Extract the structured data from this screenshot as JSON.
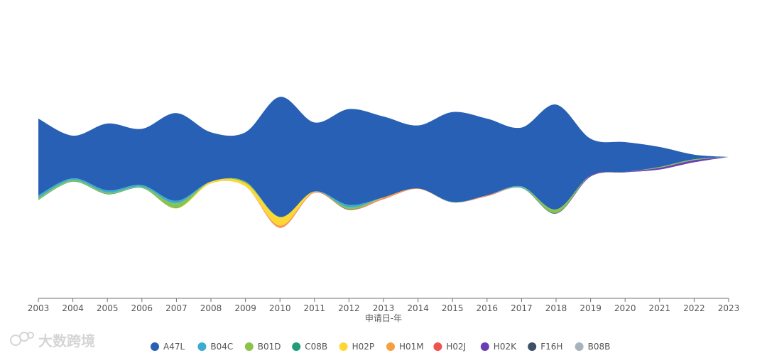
{
  "chart_data": {
    "type": "area",
    "subtype": "streamgraph",
    "title": "",
    "xlabel": "申请日-年",
    "ylabel": "",
    "x": [
      "2003",
      "2004",
      "2005",
      "2006",
      "2007",
      "2008",
      "2009",
      "2010",
      "2011",
      "2012",
      "2013",
      "2014",
      "2015",
      "2016",
      "2017",
      "2018",
      "2019",
      "2020",
      "2021",
      "2022",
      "2023"
    ],
    "legend_position": "bottom",
    "grid": false,
    "series": [
      {
        "name": "A47L",
        "color": "#2760b4",
        "values": [
          180,
          100,
          157,
          132,
          206,
          116,
          116,
          282,
          162,
          225,
          190,
          148,
          211,
          180,
          138,
          246,
          86,
          70,
          47,
          11,
          0
        ]
      },
      {
        "name": "B04C",
        "color": "#3aacd0",
        "values": [
          6,
          4,
          5,
          4,
          6,
          0,
          0,
          0,
          0,
          6,
          0,
          0,
          0,
          0,
          2,
          0,
          0,
          0,
          0,
          0,
          0
        ]
      },
      {
        "name": "B01D",
        "color": "#8bc34a",
        "values": [
          4,
          3,
          3,
          2,
          10,
          0,
          2,
          0,
          0,
          4,
          0,
          0,
          0,
          0,
          1,
          8,
          0,
          0,
          2,
          2,
          0
        ]
      },
      {
        "name": "C08B",
        "color": "#1f9d7a",
        "values": [
          1,
          1,
          1,
          1,
          1,
          0,
          1,
          0,
          0,
          1,
          0,
          0,
          1,
          0,
          1,
          1,
          0,
          0,
          0,
          0,
          0
        ]
      },
      {
        "name": "H02P",
        "color": "#fdd835",
        "values": [
          0,
          0,
          0,
          0,
          1,
          4,
          8,
          20,
          1,
          0,
          0,
          0,
          0,
          0,
          0,
          0,
          0,
          0,
          0,
          0,
          0
        ]
      },
      {
        "name": "H01M",
        "color": "#f4a040",
        "values": [
          0,
          0,
          0,
          0,
          0,
          0,
          0,
          4,
          1,
          0,
          3,
          1,
          0,
          1,
          0,
          0,
          0,
          0,
          0,
          0,
          0
        ]
      },
      {
        "name": "H02J",
        "color": "#ef5350",
        "values": [
          0,
          0,
          0,
          0,
          0,
          0,
          0,
          1,
          1,
          1,
          1,
          0,
          0,
          1,
          0,
          0,
          0,
          0,
          0,
          0,
          0
        ]
      },
      {
        "name": "H02K",
        "color": "#6a3fb5",
        "values": [
          0,
          0,
          0,
          0,
          0,
          0,
          0,
          0,
          0,
          0,
          0,
          0,
          0,
          0,
          0,
          0,
          2,
          1,
          4,
          5,
          0
        ]
      },
      {
        "name": "F16H",
        "color": "#3d5066",
        "values": [
          0,
          0,
          0,
          0,
          0,
          0,
          0,
          0,
          0,
          0,
          0,
          0,
          0,
          0,
          0,
          1,
          1,
          0,
          0,
          0,
          0
        ]
      },
      {
        "name": "B08B",
        "color": "#a7b3bc",
        "values": [
          0,
          0,
          0,
          0,
          0,
          0,
          0,
          0,
          0,
          0,
          0,
          0,
          0,
          0,
          0,
          0,
          0,
          0,
          0,
          0,
          0
        ]
      }
    ]
  },
  "watermark": {
    "text": "大数跨境"
  }
}
